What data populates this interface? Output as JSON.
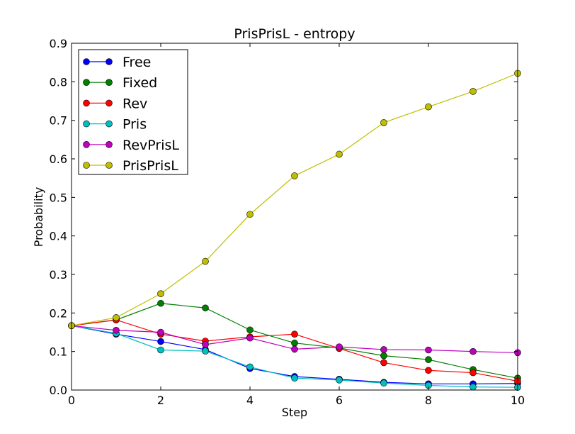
{
  "chart_data": {
    "type": "line",
    "title": "PrisPrisL - entropy",
    "xlabel": "Step",
    "ylabel": "Probability",
    "xlim": [
      0,
      10
    ],
    "ylim": [
      0,
      0.9
    ],
    "xticks": [
      "0",
      "2",
      "4",
      "6",
      "8",
      "10"
    ],
    "yticks": [
      "0.0",
      "0.1",
      "0.2",
      "0.3",
      "0.4",
      "0.5",
      "0.6",
      "0.7",
      "0.8",
      "0.9"
    ],
    "grid": false,
    "legend_position": "top-left",
    "x": [
      0,
      1,
      2,
      3,
      4,
      5,
      6,
      7,
      8,
      9,
      10
    ],
    "series": [
      {
        "name": "Free",
        "color": "#0000ff",
        "values": [
          0.167,
          0.145,
          0.126,
          0.105,
          0.056,
          0.035,
          0.028,
          0.02,
          0.016,
          0.016,
          0.017
        ]
      },
      {
        "name": "Fixed",
        "color": "#008000",
        "values": [
          0.167,
          0.182,
          0.225,
          0.213,
          0.156,
          0.122,
          0.109,
          0.089,
          0.079,
          0.053,
          0.031
        ]
      },
      {
        "name": "Rev",
        "color": "#ff0000",
        "values": [
          0.167,
          0.182,
          0.145,
          0.127,
          0.138,
          0.145,
          0.108,
          0.071,
          0.051,
          0.045,
          0.023
        ]
      },
      {
        "name": "Pris",
        "color": "#00bfbf",
        "values": [
          0.167,
          0.147,
          0.104,
          0.101,
          0.06,
          0.031,
          0.026,
          0.018,
          0.012,
          0.008,
          0.007
        ]
      },
      {
        "name": "RevPrisL",
        "color": "#bf00bf",
        "values": [
          0.167,
          0.155,
          0.15,
          0.118,
          0.135,
          0.106,
          0.112,
          0.105,
          0.104,
          0.1,
          0.097
        ]
      },
      {
        "name": "PrisPrisL",
        "color": "#bfbf00",
        "values": [
          0.167,
          0.188,
          0.25,
          0.334,
          0.456,
          0.556,
          0.612,
          0.694,
          0.735,
          0.775,
          0.822
        ]
      }
    ]
  }
}
